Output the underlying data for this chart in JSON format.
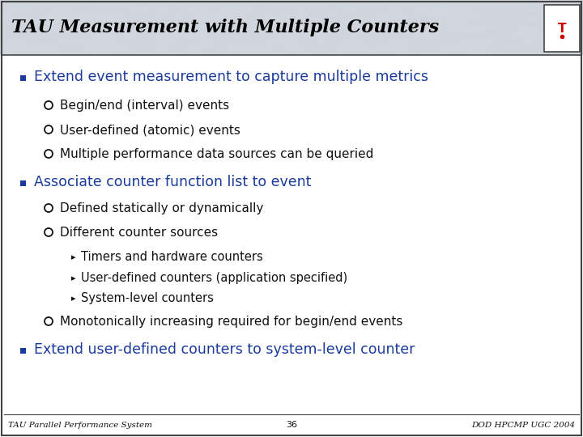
{
  "title": "TAU Measurement with Multiple Counters",
  "title_color": "#000000",
  "bg_color": "#ffffff",
  "marble_color": "#c8cdd8",
  "blue_color": "#1a3a9c",
  "black_color": "#111111",
  "bullet1": "Extend event measurement to capture multiple metrics",
  "bullet1_subs": [
    "Begin/end (interval) events",
    "User-defined (atomic) events",
    "Multiple performance data sources can be queried"
  ],
  "bullet2": "Associate counter function list to event",
  "bullet2_subs": [
    "Defined statically or dynamically",
    "Different counter sources"
  ],
  "bullet2_sub2_subs": [
    "Timers and hardware counters",
    "User-defined counters (application specified)",
    "System-level counters"
  ],
  "bullet2_sub3": "Monotonically increasing required for begin/end events",
  "bullet3": "Extend user-defined counters to system-level counter",
  "footer_left": "TAU Parallel Performance System",
  "footer_center": "36",
  "footer_right": "DOD HPCMP UGC 2004"
}
